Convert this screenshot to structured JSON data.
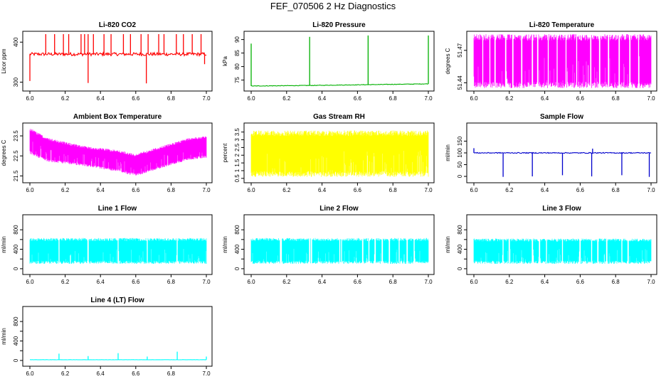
{
  "title": "FEF_070506  2 Hz Diagnostics",
  "chart_data": [
    {
      "id": "co2",
      "type": "line",
      "title": "Li-820 CO2",
      "ylabel": "Licor ppm",
      "color": "#ff0000",
      "xlim": [
        6.0,
        7.0
      ],
      "ylim": [
        285,
        420
      ],
      "yticks": [
        300,
        400
      ],
      "yticklabels": [
        "300",
        "400"
      ],
      "xticks": [
        "6.0",
        "6.2",
        "6.4",
        "6.6",
        "6.8",
        "7.0"
      ],
      "series": [
        {
          "name": "CO2",
          "baseline": 370,
          "noise": 4,
          "band": false,
          "spikes_up": [
            [
              6.09,
              420
            ],
            [
              6.14,
              420
            ],
            [
              6.19,
              420
            ],
            [
              6.22,
              420
            ],
            [
              6.29,
              420
            ],
            [
              6.31,
              420
            ],
            [
              6.33,
              420
            ],
            [
              6.36,
              420
            ],
            [
              6.42,
              420
            ],
            [
              6.46,
              420
            ],
            [
              6.53,
              420
            ],
            [
              6.57,
              420
            ],
            [
              6.63,
              420
            ],
            [
              6.67,
              420
            ],
            [
              6.73,
              420
            ],
            [
              6.76,
              420
            ],
            [
              6.83,
              420
            ],
            [
              6.87,
              420
            ],
            [
              6.92,
              420
            ],
            [
              6.97,
              420
            ]
          ],
          "spikes_down": [
            [
              6.0,
              303
            ],
            [
              6.33,
              298
            ],
            [
              6.66,
              297
            ],
            [
              6.99,
              345
            ]
          ]
        }
      ]
    },
    {
      "id": "pressure",
      "type": "line",
      "title": "Li-820 Pressure",
      "ylabel": "kPa",
      "color": "#00b000",
      "xlim": [
        6.0,
        7.0
      ],
      "ylim": [
        72,
        92
      ],
      "yticks": [
        75,
        80,
        85,
        90
      ],
      "yticklabels": [
        "75",
        "80",
        "85",
        "90"
      ],
      "xticks": [
        "6.0",
        "6.2",
        "6.4",
        "6.6",
        "6.8",
        "7.0"
      ],
      "series": [
        {
          "name": "Pressure",
          "baseline_points": [
            [
              6.0,
              72.8
            ],
            [
              6.33,
              73.0
            ],
            [
              6.66,
              73.3
            ],
            [
              7.0,
              73.6
            ]
          ],
          "noise": 0.1,
          "band": false,
          "spikes_up": [
            [
              6.0,
              88.5
            ],
            [
              6.33,
              91
            ],
            [
              6.66,
              91.5
            ],
            [
              7.0,
              91.5
            ]
          ],
          "spikes_down": []
        }
      ]
    },
    {
      "id": "licor-temp",
      "type": "line",
      "title": "Li-820 Temperature",
      "ylabel": "degrees C",
      "color": "#ff00ff",
      "xlim": [
        6.0,
        7.0
      ],
      "ylim": [
        51.435,
        51.485
      ],
      "yticks": [
        51.44,
        51.47
      ],
      "yticklabels": [
        "51.44",
        "51.47"
      ],
      "xticks": [
        "6.0",
        "6.2",
        "6.4",
        "6.6",
        "6.8",
        "7.0"
      ],
      "series": [
        {
          "name": "Temperature",
          "band": true,
          "band_lo": 51.435,
          "band_hi": 51.485,
          "noise": 0,
          "gaps": [
            6.05,
            6.09,
            6.12,
            6.18,
            6.22,
            6.27,
            6.33,
            6.36,
            6.42,
            6.47,
            6.52,
            6.58,
            6.66,
            6.71,
            6.76,
            6.82,
            6.88,
            6.93
          ],
          "spikes_up": [],
          "spikes_down": []
        }
      ]
    },
    {
      "id": "ambient-temp",
      "type": "line",
      "title": "Ambient Box Temperature",
      "ylabel": "degrees C",
      "color": "#ff00ff",
      "xlim": [
        6.0,
        7.0
      ],
      "ylim": [
        21.3,
        24.0
      ],
      "yticks": [
        21.5,
        22.5,
        23.5
      ],
      "yticklabels": [
        "21.5",
        "22.5",
        "23.5"
      ],
      "xticks": [
        "6.0",
        "6.2",
        "6.4",
        "6.6",
        "6.8",
        "7.0"
      ],
      "series": [
        {
          "name": "Ambient",
          "band": true,
          "band_points": [
            [
              6.0,
              22.6,
              23.9
            ],
            [
              6.1,
              22.2,
              23.4
            ],
            [
              6.3,
              22.0,
              23.0
            ],
            [
              6.5,
              21.7,
              22.8
            ],
            [
              6.6,
              21.5,
              22.6
            ],
            [
              6.75,
              21.9,
              23.0
            ],
            [
              6.9,
              22.3,
              23.4
            ],
            [
              7.0,
              22.4,
              23.5
            ]
          ],
          "noise": 0,
          "spikes_up": [],
          "spikes_down": []
        }
      ]
    },
    {
      "id": "gas-rh",
      "type": "line",
      "title": "Gas Stream RH",
      "ylabel": "percent",
      "color": "#ffff00",
      "xlim": [
        6.0,
        7.0
      ],
      "ylim": [
        0.4,
        3.9
      ],
      "yticks": [
        0.5,
        1.0,
        1.5,
        2.0,
        2.5,
        3.0,
        3.5
      ],
      "yticklabels": [
        "0.5",
        "1",
        "1.5",
        "2",
        "2.5",
        "3",
        "3.5"
      ],
      "xticks": [
        "6.0",
        "6.2",
        "6.4",
        "6.6",
        "6.8",
        "7.0"
      ],
      "series": [
        {
          "name": "RH",
          "band": true,
          "band_lo": 0.6,
          "band_hi": 3.6,
          "noise": 0,
          "spikes_up": [],
          "spikes_down": []
        }
      ]
    },
    {
      "id": "sample-flow",
      "type": "line",
      "title": "Sample Flow",
      "ylabel": "ml/min",
      "color": "#0000cc",
      "xlim": [
        6.0,
        7.0
      ],
      "ylim": [
        -15,
        215
      ],
      "yticks": [
        0,
        50,
        100,
        150
      ],
      "yticklabels": [
        "0",
        "50",
        "100",
        "150"
      ],
      "xticks": [
        "6.0",
        "6.2",
        "6.4",
        "6.6",
        "6.8",
        "7.0"
      ],
      "series": [
        {
          "name": "Sample",
          "baseline": 100,
          "noise": 2,
          "band": false,
          "spikes_up": [
            [
              6.0,
              120
            ],
            [
              6.67,
              118
            ]
          ],
          "spikes_down": [
            [
              6.165,
              -2
            ],
            [
              6.33,
              0
            ],
            [
              6.5,
              5
            ],
            [
              6.665,
              0
            ],
            [
              6.835,
              5
            ],
            [
              6.99,
              -2
            ]
          ]
        }
      ]
    },
    {
      "id": "line1-flow",
      "type": "line",
      "title": "Line 1 Flow",
      "ylabel": "ml/min",
      "color": "#00ffff",
      "xlim": [
        6.0,
        7.0
      ],
      "ylim": [
        -60,
        1050
      ],
      "yticks": [
        0,
        400,
        800
      ],
      "yticklabels": [
        "0",
        "400",
        "800"
      ],
      "yminor": [
        200,
        600
      ],
      "xticks": [
        "6.0",
        "6.2",
        "6.4",
        "6.6",
        "6.8",
        "7.0"
      ],
      "series": [
        {
          "name": "Line 1",
          "band": true,
          "band_lo": 100,
          "band_hi": 630,
          "noise": 0,
          "gaps": [
            6.165,
            6.33,
            6.5,
            6.665,
            6.835
          ],
          "spikes_up": [],
          "spikes_down": []
        }
      ]
    },
    {
      "id": "line2-flow",
      "type": "line",
      "title": "Line 2 Flow",
      "ylabel": "ml/min",
      "color": "#00ffff",
      "xlim": [
        6.0,
        7.0
      ],
      "ylim": [
        -60,
        1050
      ],
      "yticks": [
        0,
        400,
        800
      ],
      "yticklabels": [
        "0",
        "400",
        "800"
      ],
      "yminor": [
        200,
        600
      ],
      "xticks": [
        "6.0",
        "6.2",
        "6.4",
        "6.6",
        "6.8",
        "7.0"
      ],
      "series": [
        {
          "name": "Line 2",
          "band": true,
          "band_lo": 100,
          "band_hi": 630,
          "noise": 0,
          "gaps": [
            6.165,
            6.17,
            6.33,
            6.34,
            6.5,
            6.51,
            6.63,
            6.665,
            6.7,
            6.74,
            6.78,
            6.835,
            6.88,
            6.92
          ],
          "spikes_up": [],
          "spikes_down": []
        }
      ]
    },
    {
      "id": "line3-flow",
      "type": "line",
      "title": "Line 3 Flow",
      "ylabel": "ml/min",
      "color": "#00ffff",
      "xlim": [
        6.0,
        7.0
      ],
      "ylim": [
        -60,
        1050
      ],
      "yticks": [
        0,
        400,
        800
      ],
      "yticklabels": [
        "0",
        "400",
        "800"
      ],
      "yminor": [
        200,
        600
      ],
      "xticks": [
        "6.0",
        "6.2",
        "6.4",
        "6.6",
        "6.8",
        "7.0"
      ],
      "series": [
        {
          "name": "Line 3",
          "band": true,
          "band_lo": 100,
          "band_hi": 620,
          "noise": 0,
          "gaps": [
            6.165,
            6.2,
            6.33,
            6.37,
            6.41,
            6.5,
            6.6,
            6.665,
            6.7,
            6.75,
            6.835,
            6.87
          ],
          "spikes_up": [],
          "spikes_down": []
        }
      ]
    },
    {
      "id": "line4-flow",
      "type": "line",
      "title": "Line 4 (LT) Flow",
      "ylabel": "ml/min",
      "color": "#00ffff",
      "xlim": [
        6.0,
        7.0
      ],
      "ylim": [
        -60,
        1050
      ],
      "yticks": [
        0,
        400,
        800
      ],
      "yticklabels": [
        "0",
        "400",
        "800"
      ],
      "yminor": [
        200,
        600
      ],
      "xticks": [
        "6.0",
        "6.2",
        "6.4",
        "6.6",
        "6.8",
        "7.0"
      ],
      "series": [
        {
          "name": "Line 4",
          "baseline": 15,
          "noise": 2,
          "band": false,
          "spikes_up": [
            [
              6.165,
              140
            ],
            [
              6.33,
              90
            ],
            [
              6.5,
              150
            ],
            [
              6.665,
              80
            ],
            [
              6.835,
              180
            ],
            [
              7.0,
              80
            ]
          ],
          "spikes_down": []
        }
      ]
    }
  ]
}
